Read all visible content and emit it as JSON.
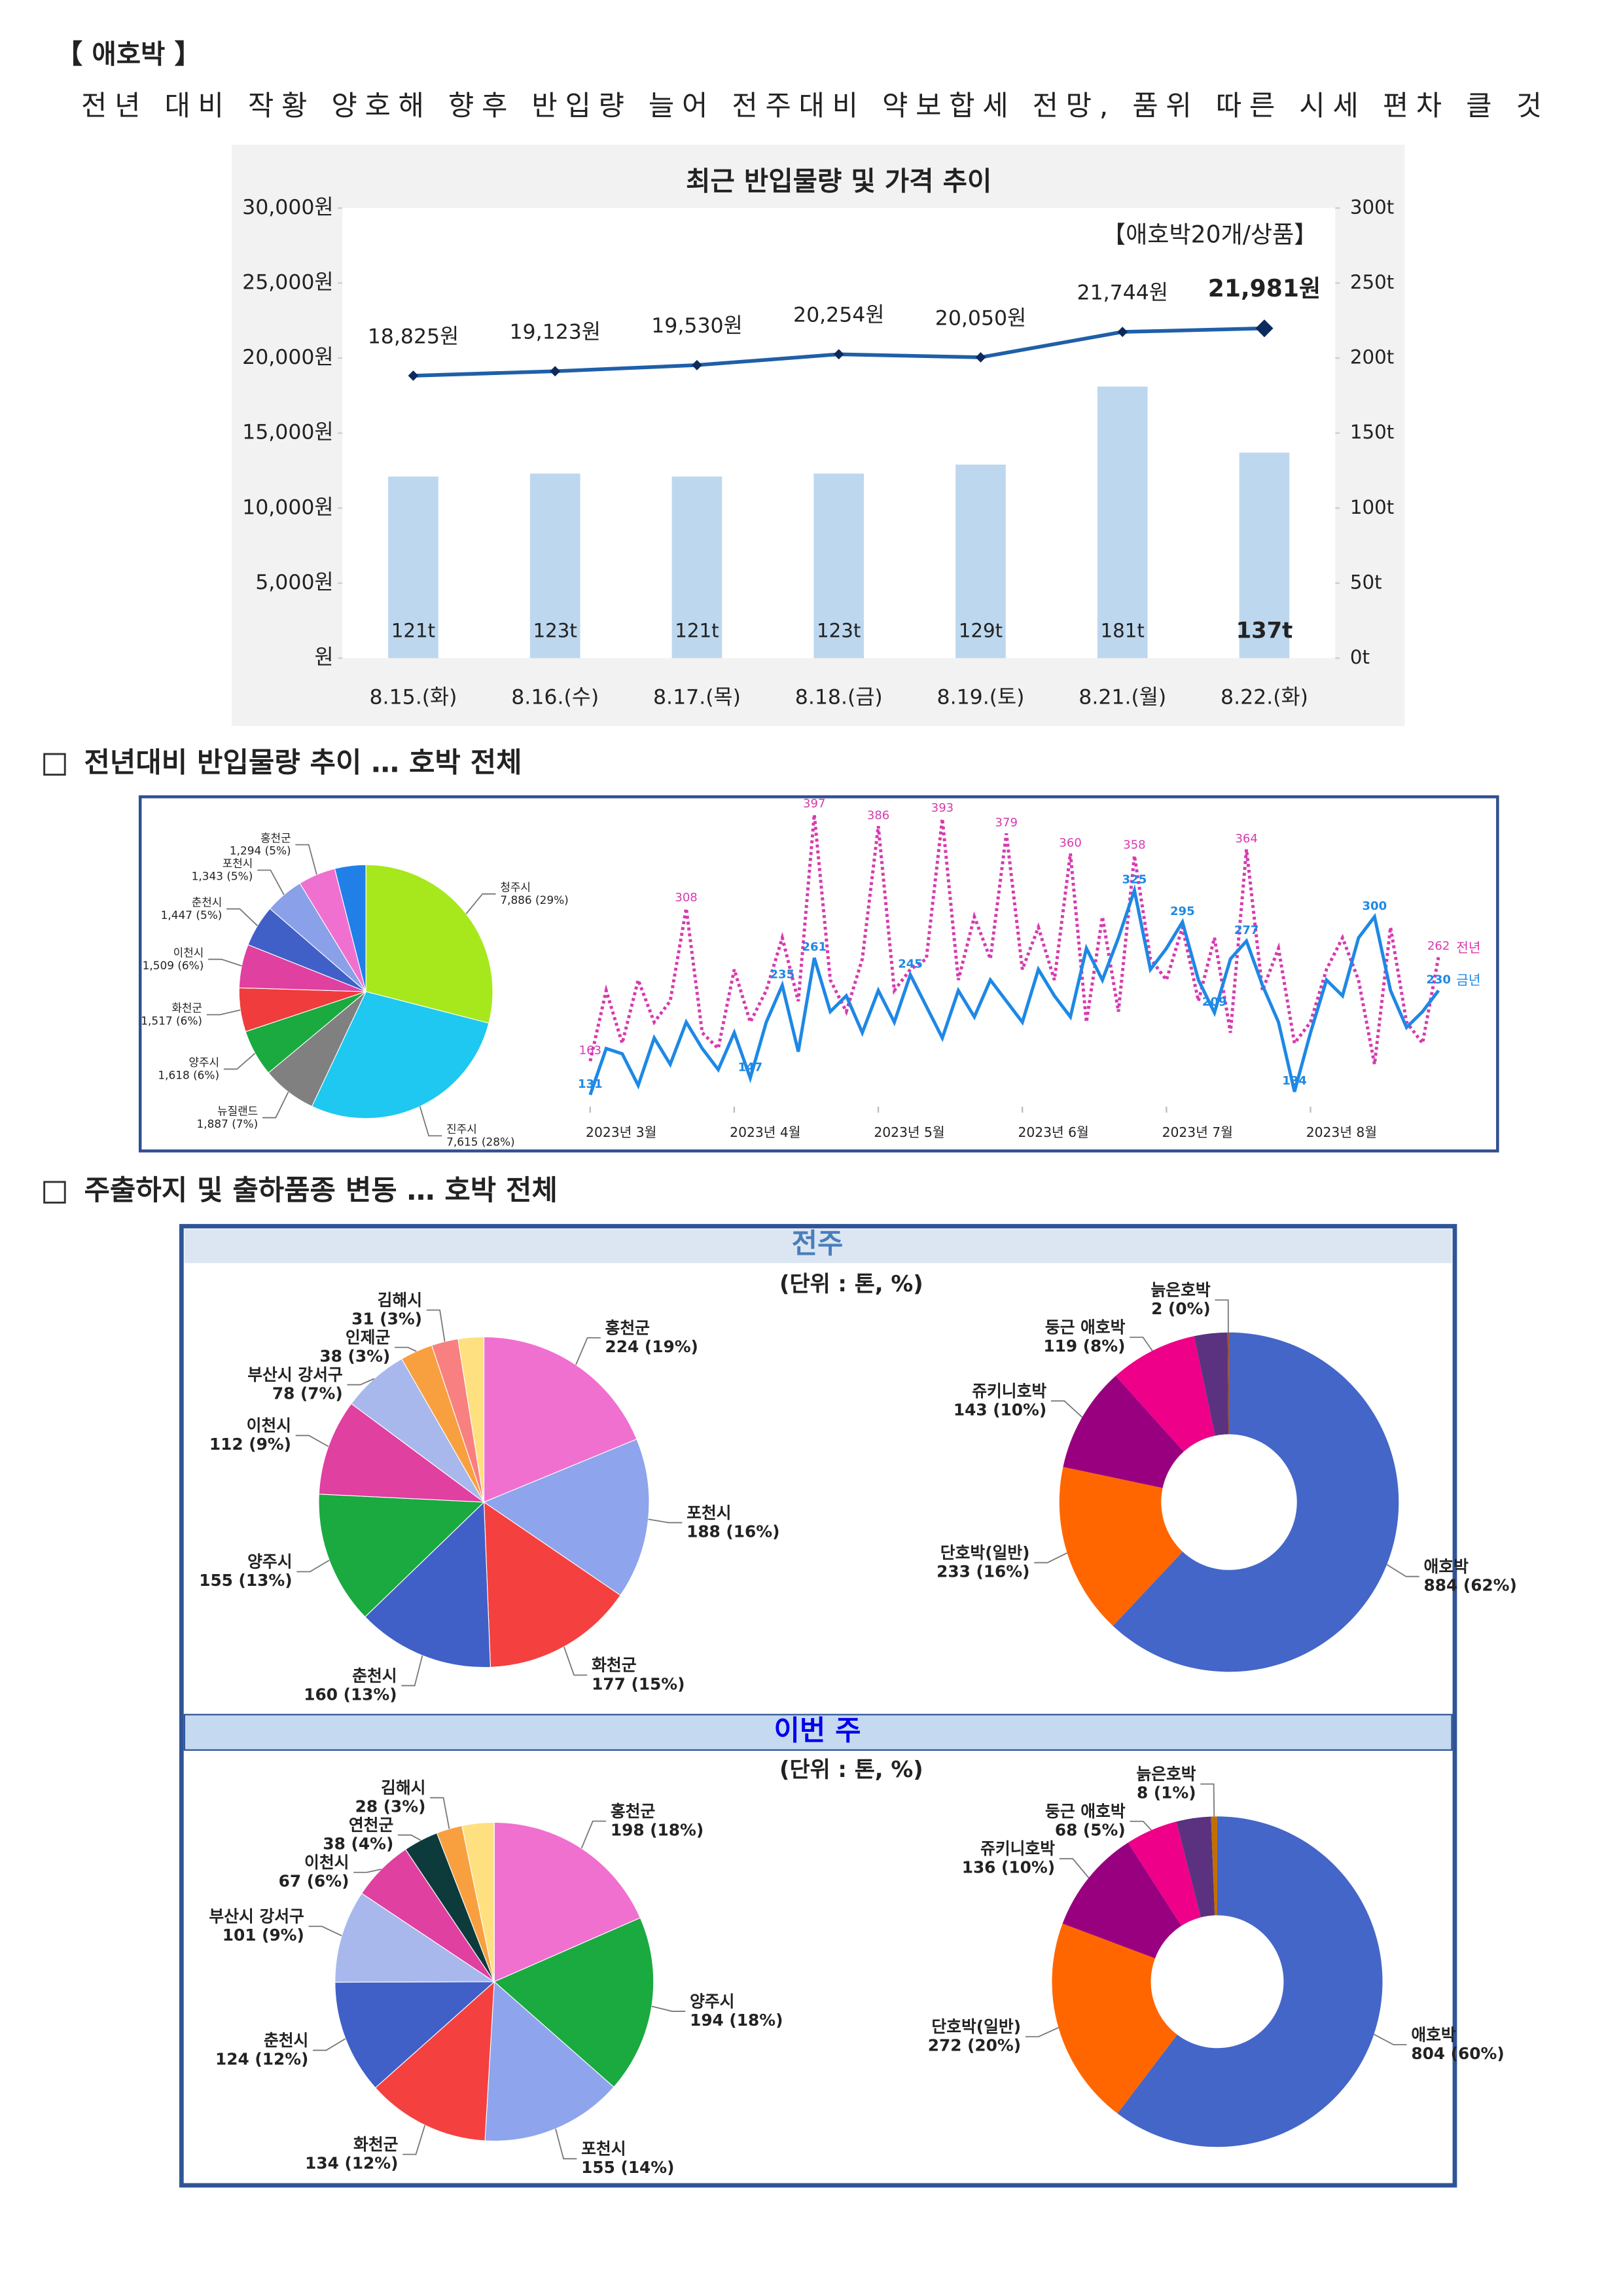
{
  "header": {
    "title": "【 애호박 】",
    "summary": "전년 대비 작황 양호해 향후 반입량 늘어 전주대비 약보합세 전망, 품위 따른 시세 편차 클 것"
  },
  "sections": [
    "전년대비 반입물량 추이 … 호박 전체",
    "주출하지 및 출하품종 변동 … 호박 전체"
  ],
  "panels": [
    {
      "title": "전주",
      "unit": "(단위 : 톤, %)"
    },
    {
      "title": "이번 주",
      "unit": "(단위 : 톤, %)"
    }
  ],
  "chart_data": [
    {
      "type": "bar_line",
      "title": "최근 반입물량 및 가격 추이",
      "annotation": "【애호박20개/상품】",
      "categories": [
        "8.15.(화)",
        "8.16.(수)",
        "8.17.(목)",
        "8.18.(금)",
        "8.19.(토)",
        "8.21.(월)",
        "8.22.(화)"
      ],
      "series": [
        {
          "name": "가격",
          "type": "line",
          "color": "#1f5fa8",
          "values": [
            18825,
            19123,
            19530,
            20254,
            20050,
            21744,
            21981
          ],
          "value_labels": [
            "18,825원",
            "19,123원",
            "19,530원",
            "20,254원",
            "20,050원",
            "21,744원",
            "21,981원"
          ]
        },
        {
          "name": "반입물량",
          "type": "bar",
          "axis": "y2",
          "color": "#bdd7ee",
          "values": [
            121,
            123,
            121,
            123,
            129,
            181,
            137
          ],
          "value_labels": [
            "121t",
            "123t",
            "121t",
            "123t",
            "129t",
            "181t",
            "137t"
          ]
        }
      ],
      "ylim": [
        0,
        30000
      ],
      "yticks": [
        {
          "value": 0,
          "label": "원"
        },
        {
          "value": 5000,
          "label": "5,000원"
        },
        {
          "value": 10000,
          "label": "10,000원"
        },
        {
          "value": 15000,
          "label": "15,000원"
        },
        {
          "value": 20000,
          "label": "20,000원"
        },
        {
          "value": 25000,
          "label": "25,000원"
        },
        {
          "value": 30000,
          "label": "30,000원"
        }
      ],
      "y2lim": [
        0,
        300
      ],
      "y2ticks": [
        {
          "value": 0,
          "label": "0t"
        },
        {
          "value": 50,
          "label": "50t"
        },
        {
          "value": 100,
          "label": "100t"
        },
        {
          "value": 150,
          "label": "150t"
        },
        {
          "value": 200,
          "label": "200t"
        },
        {
          "value": 250,
          "label": "250t"
        },
        {
          "value": 300,
          "label": "300t"
        }
      ]
    },
    {
      "type": "pie",
      "categories": [
        "청주시",
        "진주시",
        "뉴질랜드",
        "양주시",
        "화천군",
        "이천시",
        "춘천시",
        "포천시",
        "홍천군",
        null
      ],
      "values": [
        7886,
        7615,
        1887,
        1618,
        1517,
        1509,
        1447,
        1343,
        1294,
        1077
      ],
      "value_labels": [
        "7,886 (29%)",
        "7,615 (28%)",
        "1,887 (7%)",
        "1,618 (6%)",
        "1,517 (6%)",
        "1,509 (6%)",
        "1,447 (5%)",
        "1,343 (5%)",
        "1,294 (5%)",
        null
      ],
      "colors": [
        "#a6e81c",
        "#1ec8f0",
        "#808080",
        "#1aaa40",
        "#f03c3c",
        "#e040a0",
        "#4060c8",
        "#8aa0e8",
        "#f070d0",
        "#2080e8"
      ]
    },
    {
      "type": "line",
      "xlim": [
        0,
        53
      ],
      "xticks": [
        {
          "value": 0,
          "label": "2023년 3월"
        },
        {
          "value": 9,
          "label": "2023년 4월"
        },
        {
          "value": 18,
          "label": "2023년 5월"
        },
        {
          "value": 27,
          "label": "2023년 6월"
        },
        {
          "value": 36,
          "label": "2023년 7월"
        },
        {
          "value": 45,
          "label": "2023년 8월"
        }
      ],
      "series": [
        {
          "name": "전년",
          "color": "#d63aaf",
          "style": "dotted",
          "values": [
            163,
            230,
            180,
            240,
            200,
            220,
            308,
            190,
            175,
            250,
            200,
            230,
            280,
            220,
            397,
            240,
            210,
            260,
            386,
            230,
            250,
            260,
            393,
            240,
            300,
            260,
            379,
            250,
            290,
            240,
            360,
            200,
            300,
            210,
            358,
            260,
            240,
            290,
            220,
            280,
            190,
            364,
            230,
            270,
            180,
            200,
            250,
            280,
            240,
            160,
            290,
            200,
            180,
            262
          ],
          "value_labels": [
            "163",
            null,
            null,
            null,
            null,
            null,
            "308",
            null,
            null,
            null,
            null,
            null,
            null,
            null,
            "397",
            null,
            null,
            null,
            "386",
            null,
            null,
            null,
            "393",
            null,
            null,
            null,
            "379",
            null,
            null,
            null,
            "360",
            null,
            null,
            null,
            "358",
            null,
            null,
            null,
            null,
            null,
            null,
            "364",
            null,
            null,
            null,
            null,
            null,
            null,
            null,
            null,
            null,
            null,
            null,
            "262"
          ]
        },
        {
          "name": "금년",
          "color": "#1e88e5",
          "style": "solid",
          "values": [
            131,
            175,
            170,
            140,
            185,
            160,
            200,
            175,
            155,
            190,
            147,
            200,
            235,
            172,
            261,
            210,
            225,
            190,
            230,
            200,
            245,
            215,
            185,
            230,
            205,
            240,
            220,
            200,
            250,
            225,
            205,
            270,
            240,
            280,
            325,
            250,
            270,
            295,
            240,
            209,
            260,
            277,
            235,
            200,
            134,
            190,
            240,
            225,
            280,
            300,
            230,
            195,
            210,
            230
          ],
          "value_labels": [
            "131",
            null,
            null,
            null,
            null,
            null,
            null,
            null,
            null,
            null,
            "147",
            null,
            "235",
            null,
            "261",
            null,
            null,
            null,
            null,
            null,
            "245",
            null,
            null,
            null,
            null,
            null,
            null,
            null,
            null,
            null,
            null,
            null,
            null,
            null,
            "325",
            null,
            null,
            "295",
            null,
            "209",
            null,
            "277",
            null,
            null,
            "134",
            null,
            null,
            null,
            null,
            "300",
            null,
            null,
            null,
            "230"
          ]
        }
      ]
    },
    {
      "type": "pie",
      "categories": [
        "홍천군",
        "포천시",
        "화천군",
        "춘천시",
        "양주시",
        "이천시",
        "부산시 강서구",
        "인제군",
        "김해시",
        null
      ],
      "values": [
        224,
        188,
        177,
        160,
        155,
        112,
        78,
        38,
        31,
        30
      ],
      "value_labels": [
        "224 (19%)",
        "188 (16%)",
        "177 (15%)",
        "160 (13%)",
        "155 (13%)",
        "112 (9%)",
        "78 (7%)",
        "38 (3%)",
        "31 (3%)",
        null
      ],
      "colors": [
        "#f070d0",
        "#8ea4ec",
        "#f54040",
        "#4060c8",
        "#1aaa40",
        "#e040a0",
        "#a8b8ec",
        "#f8a040",
        "#f88080",
        "#ffe080"
      ]
    },
    {
      "type": "donut",
      "categories": [
        "애호박",
        "단호박(일반)",
        "쥬키니호박",
        "둥근 애호박",
        null,
        "늙은호박"
      ],
      "values": [
        884,
        233,
        143,
        119,
        45,
        2
      ],
      "value_labels": [
        "884 (62%)",
        "233 (16%)",
        "143 (10%)",
        "119 (8%)",
        null,
        "2 (0%)"
      ],
      "colors": [
        "#4466c8",
        "#ff6600",
        "#990080",
        "#ee0088",
        "#5a3280",
        "#a0522d"
      ]
    },
    {
      "type": "pie",
      "categories": [
        "홍천군",
        "양주시",
        "포천시",
        "화천군",
        "춘천시",
        "부산시 강서구",
        "이천시",
        "연천군",
        "김해시",
        null
      ],
      "values": [
        198,
        194,
        155,
        134,
        124,
        101,
        67,
        38,
        28,
        35
      ],
      "value_labels": [
        "198 (18%)",
        "194 (18%)",
        "155 (14%)",
        "134 (12%)",
        "124 (12%)",
        "101 (9%)",
        "67 (6%)",
        "38 (4%)",
        "28 (3%)",
        null
      ],
      "colors": [
        "#f070d0",
        "#1aaa40",
        "#8ea4ec",
        "#f54040",
        "#4060c8",
        "#a8b8ec",
        "#e040a0",
        "#0d3b3b",
        "#f8a040",
        "#ffe080"
      ]
    },
    {
      "type": "donut",
      "categories": [
        "애호박",
        "단호박(일반)",
        "쥬키니호박",
        "둥근 애호박",
        null,
        "늙은호박"
      ],
      "values": [
        804,
        272,
        136,
        68,
        45,
        8
      ],
      "value_labels": [
        "804 (60%)",
        "272 (20%)",
        "136 (10%)",
        "68 (5%)",
        null,
        "8 (1%)"
      ],
      "colors": [
        "#4466c8",
        "#ff6600",
        "#990080",
        "#ee0088",
        "#5a3280",
        "#c07000"
      ]
    }
  ]
}
